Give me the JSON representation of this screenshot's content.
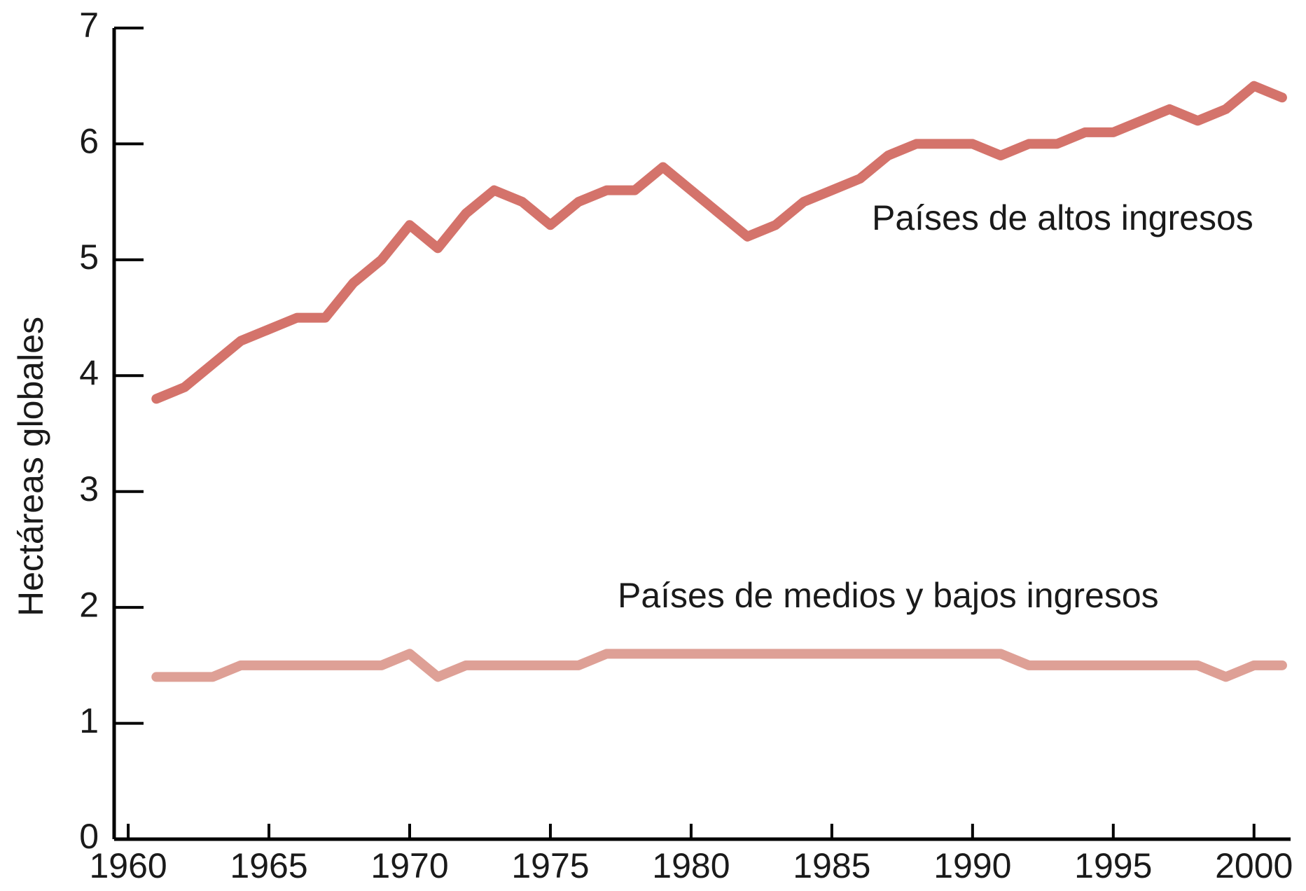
{
  "chart_data": {
    "type": "line",
    "y_label": "Hectáreas globales",
    "x": [
      1961,
      1962,
      1963,
      1964,
      1965,
      1966,
      1967,
      1968,
      1969,
      1970,
      1971,
      1972,
      1973,
      1974,
      1975,
      1976,
      1977,
      1978,
      1979,
      1980,
      1981,
      1982,
      1983,
      1984,
      1985,
      1986,
      1987,
      1988,
      1989,
      1990,
      1991,
      1992,
      1993,
      1994,
      1995,
      1996,
      1997,
      1998,
      1999,
      2000,
      2001
    ],
    "series": [
      {
        "name": "Países de altos ingresos",
        "color": "#d4736b",
        "values": [
          3.8,
          3.9,
          4.1,
          4.3,
          4.4,
          4.5,
          4.5,
          4.8,
          5.0,
          5.3,
          5.1,
          5.4,
          5.6,
          5.5,
          5.3,
          5.5,
          5.6,
          5.6,
          5.8,
          5.6,
          5.4,
          5.2,
          5.3,
          5.5,
          5.6,
          5.7,
          5.9,
          6.0,
          6.0,
          6.0,
          5.9,
          6.0,
          6.0,
          6.1,
          6.1,
          6.2,
          6.3,
          6.2,
          6.3,
          6.5,
          6.4
        ]
      },
      {
        "name": "Países de medios y bajos ingresos",
        "color": "#dea096",
        "values": [
          1.4,
          1.4,
          1.4,
          1.5,
          1.5,
          1.5,
          1.5,
          1.5,
          1.5,
          1.6,
          1.4,
          1.5,
          1.5,
          1.5,
          1.5,
          1.5,
          1.6,
          1.6,
          1.6,
          1.6,
          1.6,
          1.6,
          1.6,
          1.6,
          1.6,
          1.6,
          1.6,
          1.6,
          1.6,
          1.6,
          1.6,
          1.5,
          1.5,
          1.5,
          1.5,
          1.5,
          1.5,
          1.5,
          1.4,
          1.5,
          1.5
        ]
      }
    ],
    "xlim": [
      1959.5,
      2001.3
    ],
    "xticks": [
      1960,
      1965,
      1970,
      1975,
      1980,
      1985,
      1990,
      1995,
      2000
    ],
    "ylim": [
      0,
      7
    ],
    "yticks": [
      0,
      1,
      2,
      3,
      4,
      5,
      6,
      7
    ],
    "grid": false
  }
}
